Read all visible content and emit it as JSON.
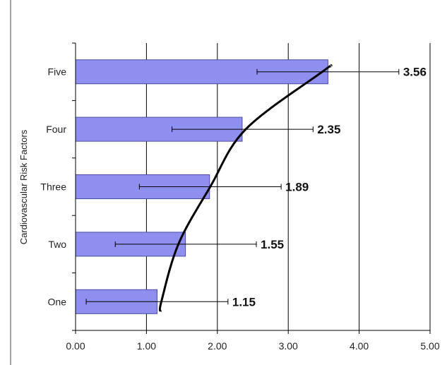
{
  "chart_data": {
    "type": "bar",
    "orientation": "horizontal",
    "categories": [
      "One",
      "Two",
      "Three",
      "Four",
      "Five"
    ],
    "values": [
      1.15,
      1.55,
      1.89,
      2.35,
      3.56
    ],
    "value_labels": [
      "1.15",
      "1.55",
      "1.89",
      "2.35",
      "3.56"
    ],
    "error_bars": [
      [
        0.15,
        2.15
      ],
      [
        0.56,
        2.55
      ],
      [
        0.9,
        2.9
      ],
      [
        1.36,
        3.35
      ],
      [
        2.56,
        4.56
      ]
    ],
    "trend_curve": {
      "type": "power",
      "points": [
        [
          1.21,
          "One"
        ],
        [
          1.45,
          "Two"
        ],
        [
          1.9,
          "Three"
        ],
        [
          2.4,
          "Four"
        ],
        [
          3.48,
          "Five"
        ]
      ]
    },
    "xlim": [
      0,
      5
    ],
    "x_ticks": [
      "0.00",
      "1.00",
      "2.00",
      "3.00",
      "4.00",
      "5.00"
    ],
    "xlabel": "",
    "ylabel": "Cardiovascular Risk Factors",
    "title": "",
    "grid": "vertical",
    "legend": "none",
    "colors": {
      "bar_fill": "#8f8ff0",
      "bar_stroke": "#4a4aa6",
      "axis": "#000000",
      "grid": "#000000",
      "curve": "#000000"
    }
  }
}
